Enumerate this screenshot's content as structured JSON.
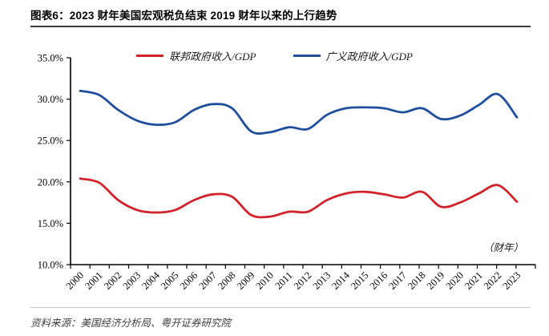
{
  "header": {
    "title": "图表6：2023 财年美国宏观税负结束 2019 财年以来的上行趋势"
  },
  "chart_data": {
    "type": "line",
    "title": "图表6：2023 财年美国宏观税负结束 2019 财年以来的上行趋势",
    "x": [
      "2000",
      "2001",
      "2002",
      "2003",
      "2004",
      "2005",
      "2006",
      "2007",
      "2008",
      "2009",
      "2010",
      "2011",
      "2012",
      "2013",
      "2014",
      "2015",
      "2016",
      "2017",
      "2018",
      "2019",
      "2020",
      "2021",
      "2022",
      "2023"
    ],
    "series": [
      {
        "name": "联邦政府收入/GDP",
        "color": "#d2232a",
        "values": [
          20.4,
          19.9,
          17.8,
          16.6,
          16.3,
          16.6,
          17.8,
          18.5,
          18.2,
          16.0,
          15.8,
          16.4,
          16.4,
          17.8,
          18.6,
          18.8,
          18.5,
          18.1,
          18.8,
          17.0,
          17.5,
          18.6,
          19.6,
          17.6
        ]
      },
      {
        "name": "广义政府收入/GDP",
        "color": "#1f4e9e",
        "values": [
          31.0,
          30.5,
          28.7,
          27.4,
          26.9,
          27.2,
          28.7,
          29.4,
          28.9,
          26.1,
          26.0,
          26.6,
          26.4,
          28.1,
          28.9,
          29.0,
          28.9,
          28.4,
          28.9,
          27.6,
          28.0,
          29.3,
          30.6,
          27.8
        ]
      }
    ],
    "ylim": [
      10,
      35
    ],
    "yticks": [
      10,
      15,
      20,
      25,
      30,
      35
    ],
    "ytick_labels": [
      "10.0%",
      "15.0%",
      "20.0%",
      "25.0%",
      "30.0%",
      "35.0%"
    ],
    "xlabel_annotation": "（财年）",
    "legend_position": "top-center",
    "grid": false,
    "smooth": true
  },
  "footer": {
    "source": "资料来源：美国经济分析局、粤开证券研究院"
  }
}
